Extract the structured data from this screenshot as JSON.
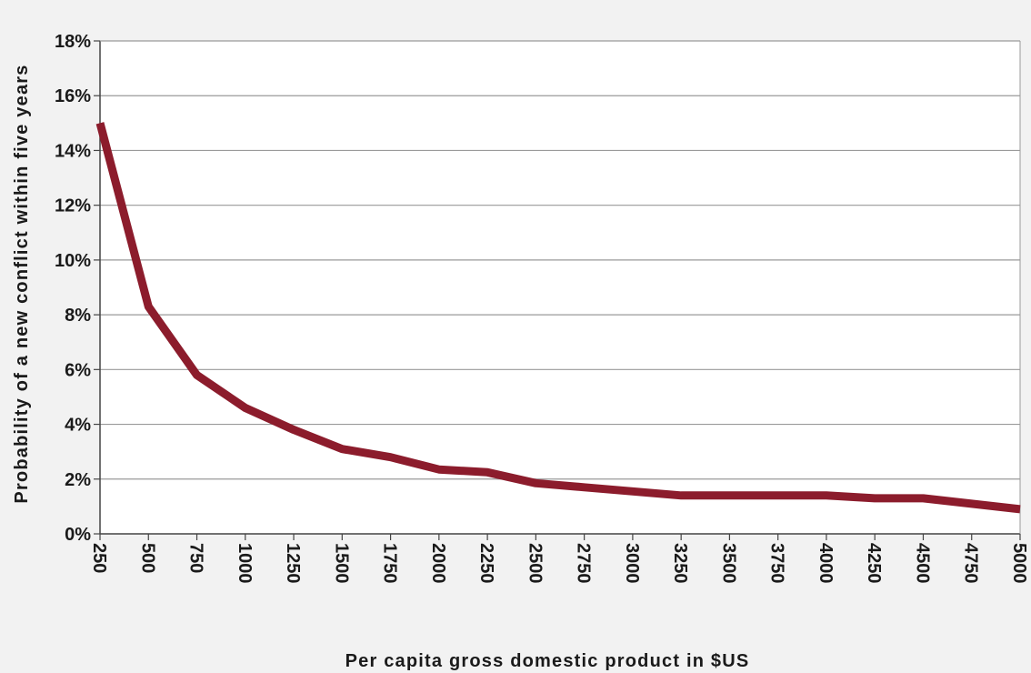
{
  "chart_data": {
    "type": "line",
    "title": "",
    "xlabel": "Per capita gross domestic product in $US",
    "ylabel": "Probability of a new conflict within five years",
    "x": [
      250,
      500,
      750,
      1000,
      1250,
      1500,
      1750,
      2000,
      2250,
      2500,
      2750,
      3000,
      3250,
      3500,
      3750,
      4000,
      4250,
      4500,
      4750,
      5000
    ],
    "x_tick_labels": [
      "250",
      "500",
      "750",
      "1000",
      "1250",
      "1500",
      "1750",
      "2000",
      "2250",
      "2500",
      "2750",
      "3000",
      "3250",
      "3500",
      "3750",
      "4000",
      "4250",
      "4500",
      "4750",
      "5000"
    ],
    "y_tick_values": [
      0,
      2,
      4,
      6,
      8,
      10,
      12,
      14,
      16,
      18
    ],
    "y_tick_labels": [
      "0%",
      "2%",
      "4%",
      "6%",
      "8%",
      "10%",
      "12%",
      "14%",
      "16%",
      "18%"
    ],
    "series": [
      {
        "values": [
          15.0,
          8.3,
          5.8,
          4.6,
          3.8,
          3.1,
          2.8,
          2.35,
          2.25,
          1.85,
          1.7,
          1.55,
          1.4,
          1.4,
          1.4,
          1.4,
          1.3,
          1.3,
          1.1,
          0.9
        ],
        "color": "#8c1c2c"
      }
    ],
    "xlim": [
      250,
      5000
    ],
    "ylim": [
      0,
      18
    ],
    "grid": true,
    "legend": "none"
  }
}
